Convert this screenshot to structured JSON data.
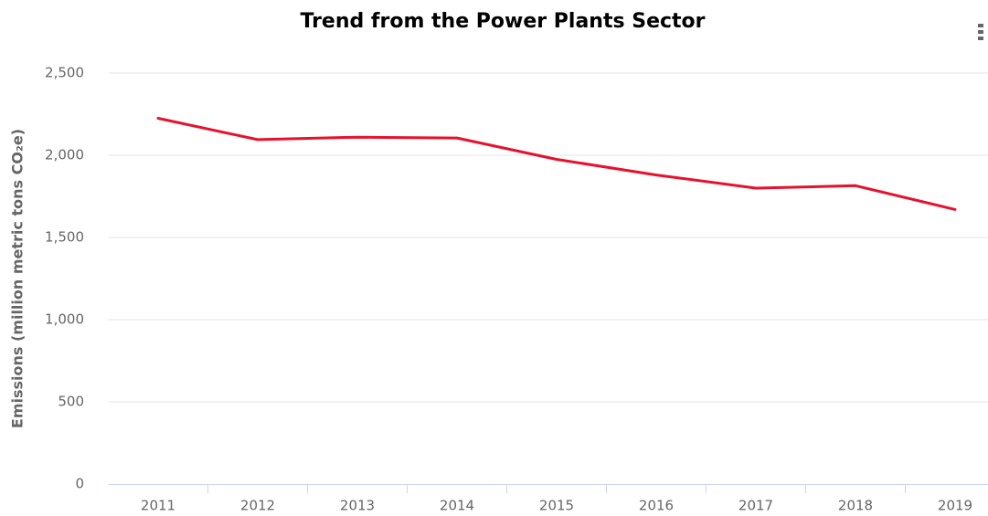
{
  "chart_data": {
    "type": "line",
    "title": "Trend from the Power Plants Sector",
    "ylabel": "Emissions (million metric tons CO₂e)",
    "categories": [
      "2011",
      "2012",
      "2013",
      "2014",
      "2015",
      "2016",
      "2017",
      "2018",
      "2019"
    ],
    "series": [
      {
        "name": "Power Plants",
        "color": "#e8112d",
        "values": [
          2225,
          2095,
          2110,
          2105,
          1975,
          1880,
          1800,
          1815,
          1670
        ]
      }
    ],
    "ylim": [
      0,
      2500
    ],
    "yticks": [
      0,
      500,
      {
        "value": 1000,
        "label": "1,000"
      },
      {
        "value": 1500,
        "label": "1,500"
      },
      {
        "value": 2000,
        "label": "2,000"
      },
      {
        "value": 2500,
        "label": "2,500"
      }
    ],
    "grid": true
  }
}
